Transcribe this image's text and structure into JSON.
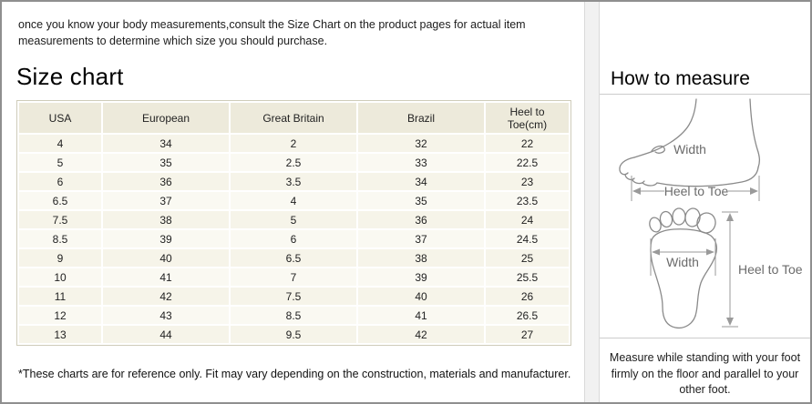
{
  "intro": {
    "text": "once you know your body measurements,consult the Size Chart on the product pages for actual item measurements to determine which size you should purchase."
  },
  "size_chart": {
    "title": "Size chart",
    "table": {
      "headers": [
        "USA",
        "European",
        "Great Britain",
        "Brazil",
        "Heel to Toe(cm)"
      ],
      "rows": [
        [
          "4",
          "34",
          "2",
          "32",
          "22"
        ],
        [
          "5",
          "35",
          "2.5",
          "33",
          "22.5"
        ],
        [
          "6",
          "36",
          "3.5",
          "34",
          "23"
        ],
        [
          "6.5",
          "37",
          "4",
          "35",
          "23.5"
        ],
        [
          "7.5",
          "38",
          "5",
          "36",
          "24"
        ],
        [
          "8.5",
          "39",
          "6",
          "37",
          "24.5"
        ],
        [
          "9",
          "40",
          "6.5",
          "38",
          "25"
        ],
        [
          "10",
          "41",
          "7",
          "39",
          "25.5"
        ],
        [
          "11",
          "42",
          "7.5",
          "40",
          "26"
        ],
        [
          "12",
          "43",
          "8.5",
          "41",
          "26.5"
        ],
        [
          "13",
          "44",
          "9.5",
          "42",
          "27"
        ]
      ]
    },
    "footnote": "*These charts are for reference only. Fit may vary depending on the construction, materials and manufacturer."
  },
  "how_to_measure": {
    "title": "How to measure",
    "side_view": {
      "width_label": "Width",
      "length_label": "Heel to Toe"
    },
    "sole_view": {
      "width_label": "Width",
      "length_label": "Heel to Toe"
    },
    "note": "Measure while standing with your foot firmly on the floor and parallel to your other foot."
  },
  "colors": {
    "table_header_bg": "#edeadb",
    "table_row_bg": "#f6f4e9",
    "table_row_alt_bg": "#faf9f2",
    "table_border": "#cfccba",
    "diagram_stroke": "#8a8a8a"
  }
}
